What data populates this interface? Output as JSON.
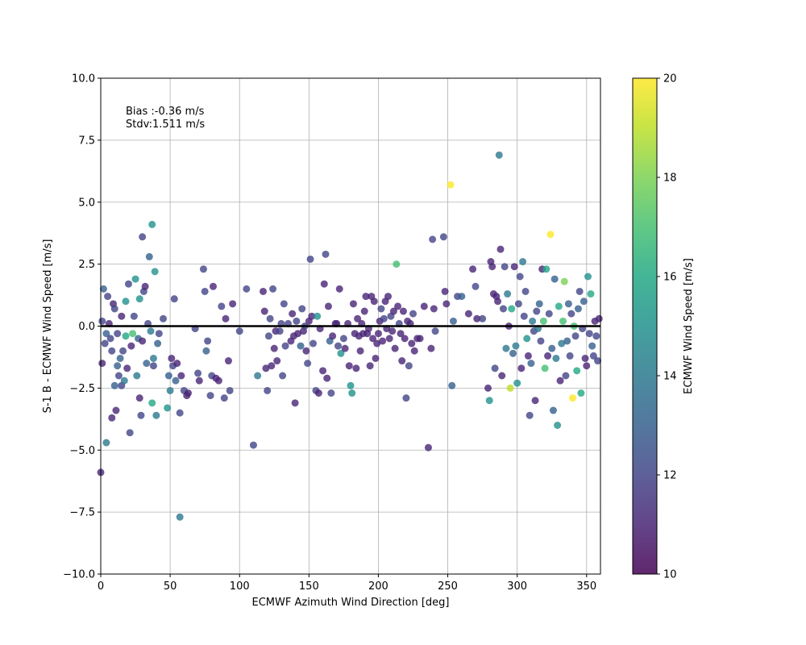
{
  "chart_data": {
    "type": "scatter",
    "title": "",
    "xlabel": "ECMWF Azimuth Wind Direction [deg]",
    "ylabel": "S-1 B - ECMWF Wind Speed [m/s]",
    "xlim": [
      0,
      360
    ],
    "ylim": [
      -10,
      10
    ],
    "xticks": [
      0,
      50,
      100,
      150,
      200,
      250,
      300,
      350
    ],
    "xtick_labels": [
      "0",
      "50",
      "100",
      "150",
      "200",
      "250",
      "300",
      "350"
    ],
    "yticks": [
      -10,
      -7.5,
      -5,
      -2.5,
      0,
      2.5,
      5,
      7.5,
      10
    ],
    "ytick_labels": [
      "−10.0",
      "−7.5",
      "−5.0",
      "−2.5",
      "0.0",
      "2.5",
      "5.0",
      "7.5",
      "10.0"
    ],
    "grid": true,
    "reference_line_y": 0,
    "annotations": [
      "Bias :-0.36 m/s",
      "Stdv:1.511 m/s"
    ],
    "colorbar": {
      "label": "ECMWF Wind Speed [m/s]",
      "range": [
        10,
        20
      ],
      "ticks": [
        10,
        12,
        14,
        16,
        18,
        20
      ],
      "tick_labels": [
        "10",
        "12",
        "14",
        "16",
        "18",
        "20"
      ],
      "colormap": "viridis"
    },
    "points": [
      [
        0,
        -5.9,
        11
      ],
      [
        1,
        -1.5,
        11
      ],
      [
        1,
        0.2,
        12
      ],
      [
        2,
        1.5,
        13
      ],
      [
        3,
        -0.7,
        12
      ],
      [
        4,
        -4.7,
        14
      ],
      [
        4,
        -0.3,
        13
      ],
      [
        5,
        1.2,
        12
      ],
      [
        6,
        0.1,
        11
      ],
      [
        7,
        -0.5,
        12
      ],
      [
        8,
        -3.7,
        11
      ],
      [
        8,
        -1.0,
        12
      ],
      [
        9,
        0.9,
        11
      ],
      [
        10,
        -2.4,
        13
      ],
      [
        10,
        0.7,
        12
      ],
      [
        11,
        -3.4,
        11
      ],
      [
        12,
        -1.6,
        13
      ],
      [
        12,
        -0.3,
        12
      ],
      [
        13,
        -2.0,
        12
      ],
      [
        14,
        -1.3,
        13
      ],
      [
        15,
        -2.4,
        12
      ],
      [
        15,
        0.4,
        11
      ],
      [
        16,
        -1.0,
        12
      ],
      [
        17,
        -2.2,
        14
      ],
      [
        18,
        1.0,
        15
      ],
      [
        18,
        -0.4,
        16
      ],
      [
        19,
        -1.7,
        11
      ],
      [
        20,
        1.7,
        12
      ],
      [
        21,
        -4.3,
        12
      ],
      [
        22,
        -0.8,
        11
      ],
      [
        23,
        -0.3,
        17
      ],
      [
        24,
        0.4,
        12
      ],
      [
        25,
        1.9,
        15
      ],
      [
        26,
        -2.0,
        14
      ],
      [
        27,
        -0.5,
        13
      ],
      [
        28,
        1.1,
        15
      ],
      [
        28,
        -2.9,
        11
      ],
      [
        29,
        -3.6,
        12
      ],
      [
        30,
        3.6,
        12
      ],
      [
        30,
        -0.6,
        11
      ],
      [
        31,
        1.4,
        12
      ],
      [
        32,
        1.6,
        11
      ],
      [
        33,
        -1.5,
        13
      ],
      [
        34,
        0.1,
        12
      ],
      [
        35,
        2.8,
        13
      ],
      [
        36,
        -0.2,
        14
      ],
      [
        37,
        -3.1,
        16
      ],
      [
        37,
        4.1,
        15
      ],
      [
        38,
        -1.3,
        14
      ],
      [
        38,
        -1.6,
        12
      ],
      [
        39,
        2.2,
        15
      ],
      [
        40,
        -3.6,
        14
      ],
      [
        41,
        -0.7,
        13
      ],
      [
        42,
        -0.3,
        12
      ],
      [
        45,
        0.3,
        12
      ],
      [
        48,
        -3.3,
        15
      ],
      [
        49,
        -2.0,
        13
      ],
      [
        50,
        -2.6,
        14
      ],
      [
        51,
        -1.3,
        11
      ],
      [
        52,
        -1.6,
        12
      ],
      [
        53,
        1.1,
        12
      ],
      [
        54,
        -2.2,
        13
      ],
      [
        55,
        -1.5,
        11
      ],
      [
        57,
        -7.7,
        14
      ],
      [
        57,
        -3.5,
        12
      ],
      [
        58,
        -2.0,
        11
      ],
      [
        60,
        -2.6,
        12
      ],
      [
        62,
        -2.8,
        11
      ],
      [
        63,
        -2.7,
        11
      ],
      [
        68,
        -0.1,
        12
      ],
      [
        70,
        -1.9,
        12
      ],
      [
        71,
        -2.2,
        11
      ],
      [
        74,
        2.3,
        12
      ],
      [
        75,
        1.4,
        12
      ],
      [
        76,
        -1.0,
        13
      ],
      [
        77,
        -0.6,
        12
      ],
      [
        79,
        -2.8,
        12
      ],
      [
        80,
        -2.0,
        12
      ],
      [
        81,
        1.6,
        11
      ],
      [
        83,
        -2.1,
        11
      ],
      [
        85,
        -2.2,
        11
      ],
      [
        87,
        0.8,
        12
      ],
      [
        89,
        -2.9,
        12
      ],
      [
        90,
        0.3,
        11
      ],
      [
        92,
        -1.4,
        11
      ],
      [
        93,
        -2.6,
        12
      ],
      [
        95,
        0.9,
        11
      ],
      [
        100,
        -0.2,
        12
      ],
      [
        105,
        1.5,
        12
      ],
      [
        110,
        -4.8,
        12
      ],
      [
        113,
        -2.0,
        14
      ],
      [
        117,
        1.4,
        11
      ],
      [
        118,
        0.6,
        11
      ],
      [
        119,
        -1.7,
        11
      ],
      [
        120,
        -2.6,
        12
      ],
      [
        121,
        -0.4,
        12
      ],
      [
        122,
        0.3,
        12
      ],
      [
        123,
        -1.6,
        11
      ],
      [
        124,
        1.5,
        12
      ],
      [
        125,
        -0.9,
        11
      ],
      [
        126,
        -0.2,
        11
      ],
      [
        127,
        -1.4,
        11
      ],
      [
        129,
        -0.2,
        12
      ],
      [
        130,
        0.1,
        12
      ],
      [
        131,
        -2.0,
        12
      ],
      [
        132,
        0.9,
        12
      ],
      [
        133,
        -0.8,
        12
      ],
      [
        135,
        0.1,
        12
      ],
      [
        137,
        -0.6,
        11
      ],
      [
        138,
        0.5,
        11
      ],
      [
        139,
        -0.4,
        11
      ],
      [
        140,
        -3.1,
        11
      ],
      [
        141,
        0.2,
        12
      ],
      [
        142,
        -0.3,
        11
      ],
      [
        144,
        -0.8,
        13
      ],
      [
        145,
        0.7,
        12
      ],
      [
        146,
        -0.2,
        11
      ],
      [
        147,
        0.0,
        12
      ],
      [
        148,
        -1.0,
        11
      ],
      [
        149,
        -1.5,
        12
      ],
      [
        150,
        0.2,
        11
      ],
      [
        151,
        2.7,
        12
      ],
      [
        152,
        0.4,
        11
      ],
      [
        153,
        -0.7,
        12
      ],
      [
        155,
        -2.6,
        12
      ],
      [
        156,
        0.4,
        15
      ],
      [
        157,
        -2.7,
        11
      ],
      [
        158,
        -0.1,
        11
      ],
      [
        160,
        -1.8,
        11
      ],
      [
        161,
        1.7,
        11
      ],
      [
        162,
        2.9,
        12
      ],
      [
        163,
        -2.1,
        11
      ],
      [
        164,
        0.8,
        11
      ],
      [
        165,
        -0.6,
        13
      ],
      [
        166,
        -2.7,
        12
      ],
      [
        167,
        -0.4,
        11
      ],
      [
        169,
        0.1,
        11
      ],
      [
        170,
        0.1,
        11
      ],
      [
        171,
        -0.8,
        12
      ],
      [
        172,
        1.5,
        11
      ],
      [
        173,
        -1.1,
        15
      ],
      [
        175,
        -0.5,
        12
      ],
      [
        176,
        -0.9,
        11
      ],
      [
        178,
        0.1,
        11
      ],
      [
        179,
        -1.6,
        11
      ],
      [
        180,
        -2.4,
        15
      ],
      [
        181,
        -2.7,
        15
      ],
      [
        182,
        0.9,
        11
      ],
      [
        183,
        -0.3,
        11
      ],
      [
        184,
        -1.7,
        11
      ],
      [
        185,
        0.3,
        11
      ],
      [
        186,
        -0.4,
        11
      ],
      [
        187,
        -1.0,
        11
      ],
      [
        188,
        0.1,
        11
      ],
      [
        189,
        -0.3,
        11
      ],
      [
        190,
        0.6,
        11
      ],
      [
        191,
        1.2,
        11
      ],
      [
        192,
        -0.3,
        11
      ],
      [
        193,
        -0.1,
        11
      ],
      [
        194,
        -1.6,
        11
      ],
      [
        195,
        1.2,
        11
      ],
      [
        196,
        -0.5,
        11
      ],
      [
        197,
        1.0,
        11
      ],
      [
        198,
        -1.3,
        11
      ],
      [
        199,
        -0.7,
        11
      ],
      [
        200,
        -0.3,
        11
      ],
      [
        201,
        0.2,
        11
      ],
      [
        202,
        0.7,
        12
      ],
      [
        203,
        -0.6,
        11
      ],
      [
        204,
        0.3,
        12
      ],
      [
        205,
        1.0,
        11
      ],
      [
        206,
        -0.1,
        11
      ],
      [
        207,
        1.2,
        11
      ],
      [
        208,
        -0.5,
        11
      ],
      [
        209,
        0.4,
        12
      ],
      [
        210,
        -0.2,
        11
      ],
      [
        211,
        0.6,
        11
      ],
      [
        212,
        -0.9,
        11
      ],
      [
        213,
        2.5,
        17
      ],
      [
        214,
        0.8,
        11
      ],
      [
        215,
        0.1,
        12
      ],
      [
        216,
        -0.3,
        11
      ],
      [
        217,
        -1.4,
        11
      ],
      [
        218,
        0.6,
        11
      ],
      [
        219,
        -0.5,
        11
      ],
      [
        220,
        -2.9,
        12
      ],
      [
        221,
        0.2,
        11
      ],
      [
        222,
        -1.6,
        12
      ],
      [
        223,
        0.1,
        11
      ],
      [
        224,
        -0.7,
        11
      ],
      [
        225,
        0.5,
        12
      ],
      [
        226,
        -1.0,
        11
      ],
      [
        228,
        -0.5,
        11
      ],
      [
        230,
        -0.5,
        11
      ],
      [
        233,
        0.8,
        11
      ],
      [
        236,
        -4.9,
        11
      ],
      [
        238,
        -0.9,
        11
      ],
      [
        239,
        3.5,
        12
      ],
      [
        240,
        0.7,
        11
      ],
      [
        241,
        -0.2,
        12
      ],
      [
        247,
        3.6,
        12
      ],
      [
        248,
        1.4,
        11
      ],
      [
        249,
        0.9,
        11
      ],
      [
        252,
        5.7,
        20
      ],
      [
        253,
        -2.4,
        13
      ],
      [
        254,
        0.2,
        13
      ],
      [
        257,
        1.2,
        12
      ],
      [
        260,
        1.2,
        13
      ],
      [
        265,
        0.5,
        11
      ],
      [
        268,
        2.3,
        11
      ],
      [
        270,
        1.6,
        12
      ],
      [
        271,
        0.3,
        11
      ],
      [
        275,
        0.3,
        12
      ],
      [
        279,
        -2.5,
        11
      ],
      [
        280,
        -3.0,
        15
      ],
      [
        281,
        2.6,
        11
      ],
      [
        282,
        2.4,
        11
      ],
      [
        283,
        1.3,
        11
      ],
      [
        284,
        -1.7,
        12
      ],
      [
        285,
        1.2,
        11
      ],
      [
        286,
        1.0,
        11
      ],
      [
        287,
        6.9,
        14
      ],
      [
        288,
        3.1,
        11
      ],
      [
        289,
        -2.0,
        11
      ],
      [
        290,
        0.7,
        12
      ],
      [
        291,
        2.4,
        12
      ],
      [
        292,
        -0.9,
        14
      ],
      [
        293,
        1.3,
        14
      ],
      [
        294,
        0.0,
        11
      ],
      [
        295,
        -2.5,
        19
      ],
      [
        296,
        0.7,
        16
      ],
      [
        297,
        -1.1,
        13
      ],
      [
        298,
        2.4,
        11
      ],
      [
        299,
        -0.8,
        14
      ],
      [
        300,
        -2.3,
        15
      ],
      [
        301,
        0.9,
        12
      ],
      [
        302,
        2.0,
        12
      ],
      [
        303,
        -1.7,
        11
      ],
      [
        304,
        2.6,
        14
      ],
      [
        305,
        0.4,
        12
      ],
      [
        306,
        1.4,
        12
      ],
      [
        307,
        -0.5,
        15
      ],
      [
        308,
        -1.2,
        11
      ],
      [
        309,
        -3.6,
        12
      ],
      [
        310,
        -1.5,
        13
      ],
      [
        311,
        0.2,
        14
      ],
      [
        312,
        -0.2,
        12
      ],
      [
        313,
        -3.0,
        11
      ],
      [
        314,
        0.6,
        12
      ],
      [
        315,
        -0.1,
        14
      ],
      [
        316,
        0.9,
        13
      ],
      [
        317,
        -0.6,
        12
      ],
      [
        318,
        2.3,
        11
      ],
      [
        319,
        0.2,
        17
      ],
      [
        320,
        -1.7,
        17
      ],
      [
        321,
        2.3,
        16
      ],
      [
        322,
        -1.2,
        11
      ],
      [
        323,
        0.5,
        12
      ],
      [
        324,
        3.7,
        20
      ],
      [
        325,
        -0.9,
        13
      ],
      [
        326,
        -3.4,
        13
      ],
      [
        327,
        1.9,
        13
      ],
      [
        328,
        -1.3,
        14
      ],
      [
        329,
        -4.0,
        15
      ],
      [
        330,
        0.8,
        16
      ],
      [
        331,
        -2.2,
        11
      ],
      [
        332,
        -0.7,
        14
      ],
      [
        333,
        0.2,
        17
      ],
      [
        334,
        1.8,
        18
      ],
      [
        335,
        -2.0,
        12
      ],
      [
        336,
        -0.6,
        13
      ],
      [
        337,
        0.9,
        13
      ],
      [
        338,
        -1.2,
        12
      ],
      [
        339,
        0.5,
        12
      ],
      [
        340,
        -2.9,
        20
      ],
      [
        341,
        0.0,
        17
      ],
      [
        342,
        -0.4,
        12
      ],
      [
        343,
        -1.8,
        16
      ],
      [
        344,
        0.7,
        13
      ],
      [
        345,
        1.4,
        12
      ],
      [
        346,
        -2.7,
        16
      ],
      [
        347,
        -0.1,
        12
      ],
      [
        348,
        1.0,
        13
      ],
      [
        349,
        -1.3,
        11
      ],
      [
        350,
        -1.6,
        11
      ],
      [
        351,
        2.0,
        15
      ],
      [
        352,
        -0.3,
        12
      ],
      [
        353,
        1.3,
        16
      ],
      [
        354,
        -0.8,
        13
      ],
      [
        355,
        -1.2,
        12
      ],
      [
        356,
        0.2,
        11
      ],
      [
        357,
        -0.4,
        12
      ],
      [
        358,
        -1.4,
        12
      ],
      [
        359,
        0.3,
        11
      ]
    ]
  }
}
